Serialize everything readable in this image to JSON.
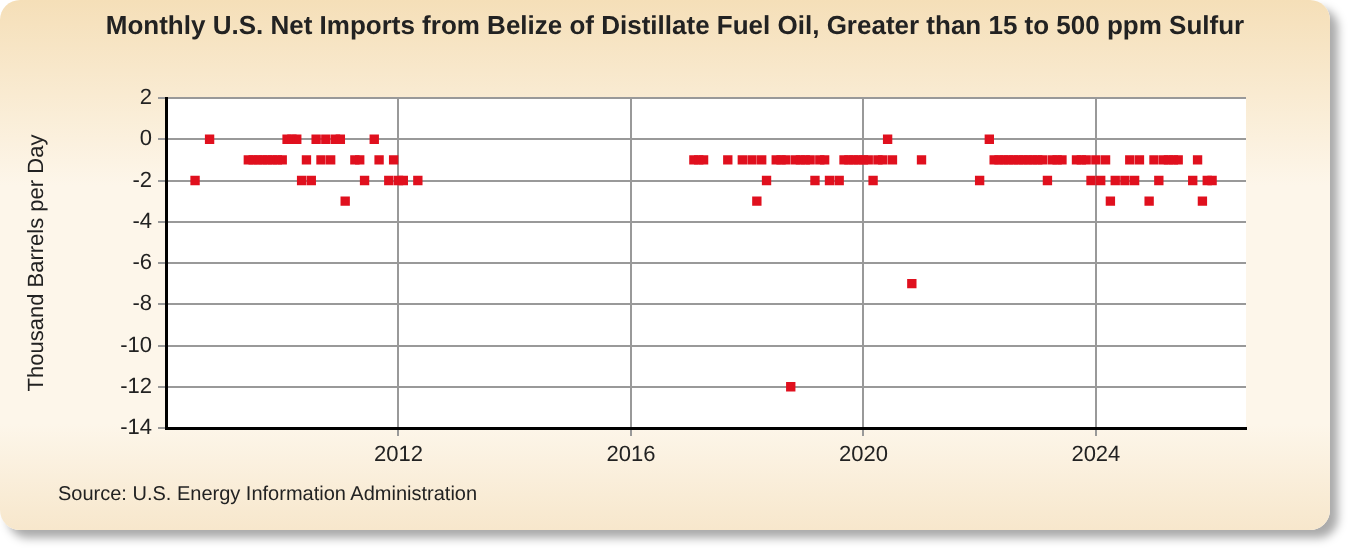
{
  "chart_data": {
    "type": "scatter",
    "title": "Monthly U.S. Net Imports from Belize of Distillate Fuel Oil, Greater than 15 to 500 ppm Sulfur",
    "ylabel": "Thousand Barrels per Day",
    "annotations": [
      "Source: U.S. Energy Information Administration"
    ],
    "x": [
      "2008-07",
      "2008-10",
      "2009-06",
      "2009-07",
      "2009-08",
      "2009-09",
      "2009-10",
      "2009-11",
      "2009-12",
      "2010-01",
      "2010-02",
      "2010-03",
      "2010-04",
      "2010-05",
      "2010-06",
      "2010-07",
      "2010-08",
      "2010-09",
      "2010-10",
      "2010-11",
      "2010-12",
      "2011-01",
      "2011-02",
      "2011-04",
      "2011-05",
      "2011-06",
      "2011-08",
      "2011-09",
      "2011-11",
      "2011-12",
      "2012-01",
      "2012-02",
      "2012-05",
      "2017-02",
      "2017-03",
      "2017-04",
      "2017-09",
      "2017-12",
      "2018-02",
      "2018-03",
      "2018-04",
      "2018-05",
      "2018-07",
      "2018-08",
      "2018-09",
      "2018-10",
      "2018-11",
      "2018-12",
      "2019-01",
      "2019-02",
      "2019-03",
      "2019-04",
      "2019-05",
      "2019-06",
      "2019-08",
      "2019-09",
      "2019-10",
      "2019-11",
      "2019-12",
      "2020-01",
      "2020-02",
      "2020-03",
      "2020-04",
      "2020-05",
      "2020-06",
      "2020-07",
      "2020-11",
      "2021-01",
      "2022-01",
      "2022-03",
      "2022-04",
      "2022-05",
      "2022-06",
      "2022-07",
      "2022-08",
      "2022-09",
      "2022-10",
      "2022-11",
      "2022-12",
      "2023-01",
      "2023-02",
      "2023-03",
      "2023-04",
      "2023-05",
      "2023-06",
      "2023-09",
      "2023-10",
      "2023-11",
      "2023-12",
      "2024-01",
      "2024-02",
      "2024-03",
      "2024-04",
      "2024-05",
      "2024-07",
      "2024-08",
      "2024-09",
      "2024-10",
      "2024-12",
      "2025-01",
      "2025-02",
      "2025-03",
      "2025-04",
      "2025-05",
      "2025-06",
      "2025-09",
      "2025-10",
      "2025-11",
      "2025-12",
      "2026-01"
    ],
    "series": [
      {
        "color": "#e0101e",
        "values": [
          -2,
          0,
          -1,
          -1,
          -1,
          -1,
          -1,
          -1,
          -1,
          -1,
          0,
          0,
          0,
          -2,
          -1,
          -2,
          0,
          -1,
          0,
          -1,
          0,
          0,
          -3,
          -1,
          -1,
          -2,
          0,
          -1,
          -2,
          -1,
          -2,
          -2,
          -2,
          -1,
          -1,
          -1,
          -1,
          -1,
          -1,
          -3,
          -1,
          -2,
          -1,
          -1,
          -1,
          -12,
          -1,
          -1,
          -1,
          -1,
          -2,
          -1,
          -1,
          -2,
          -2,
          -1,
          -1,
          -1,
          -1,
          -1,
          -1,
          -2,
          -1,
          -1,
          0,
          -1,
          -7,
          -1,
          -2,
          0,
          -1,
          -1,
          -1,
          -1,
          -1,
          -1,
          -1,
          -1,
          -1,
          -1,
          -1,
          -2,
          -1,
          -1,
          -1,
          -1,
          -1,
          -1,
          -2,
          -1,
          -2,
          -1,
          -3,
          -2,
          -2,
          -1,
          -2,
          -1,
          -3,
          -1,
          -2,
          -1,
          -1,
          -1,
          -1,
          -2,
          -1,
          -3,
          -2,
          -2
        ]
      }
    ],
    "xlim": [
      "2008-01",
      "2026-08"
    ],
    "xticks": [
      "2012",
      "2016",
      "2020",
      "2024"
    ],
    "ylim": [
      -14,
      2
    ],
    "yticks": [
      -14,
      -12,
      -10,
      -8,
      -6,
      -4,
      -2,
      0,
      2
    ],
    "grid": true,
    "marker": "square",
    "legend": false
  }
}
